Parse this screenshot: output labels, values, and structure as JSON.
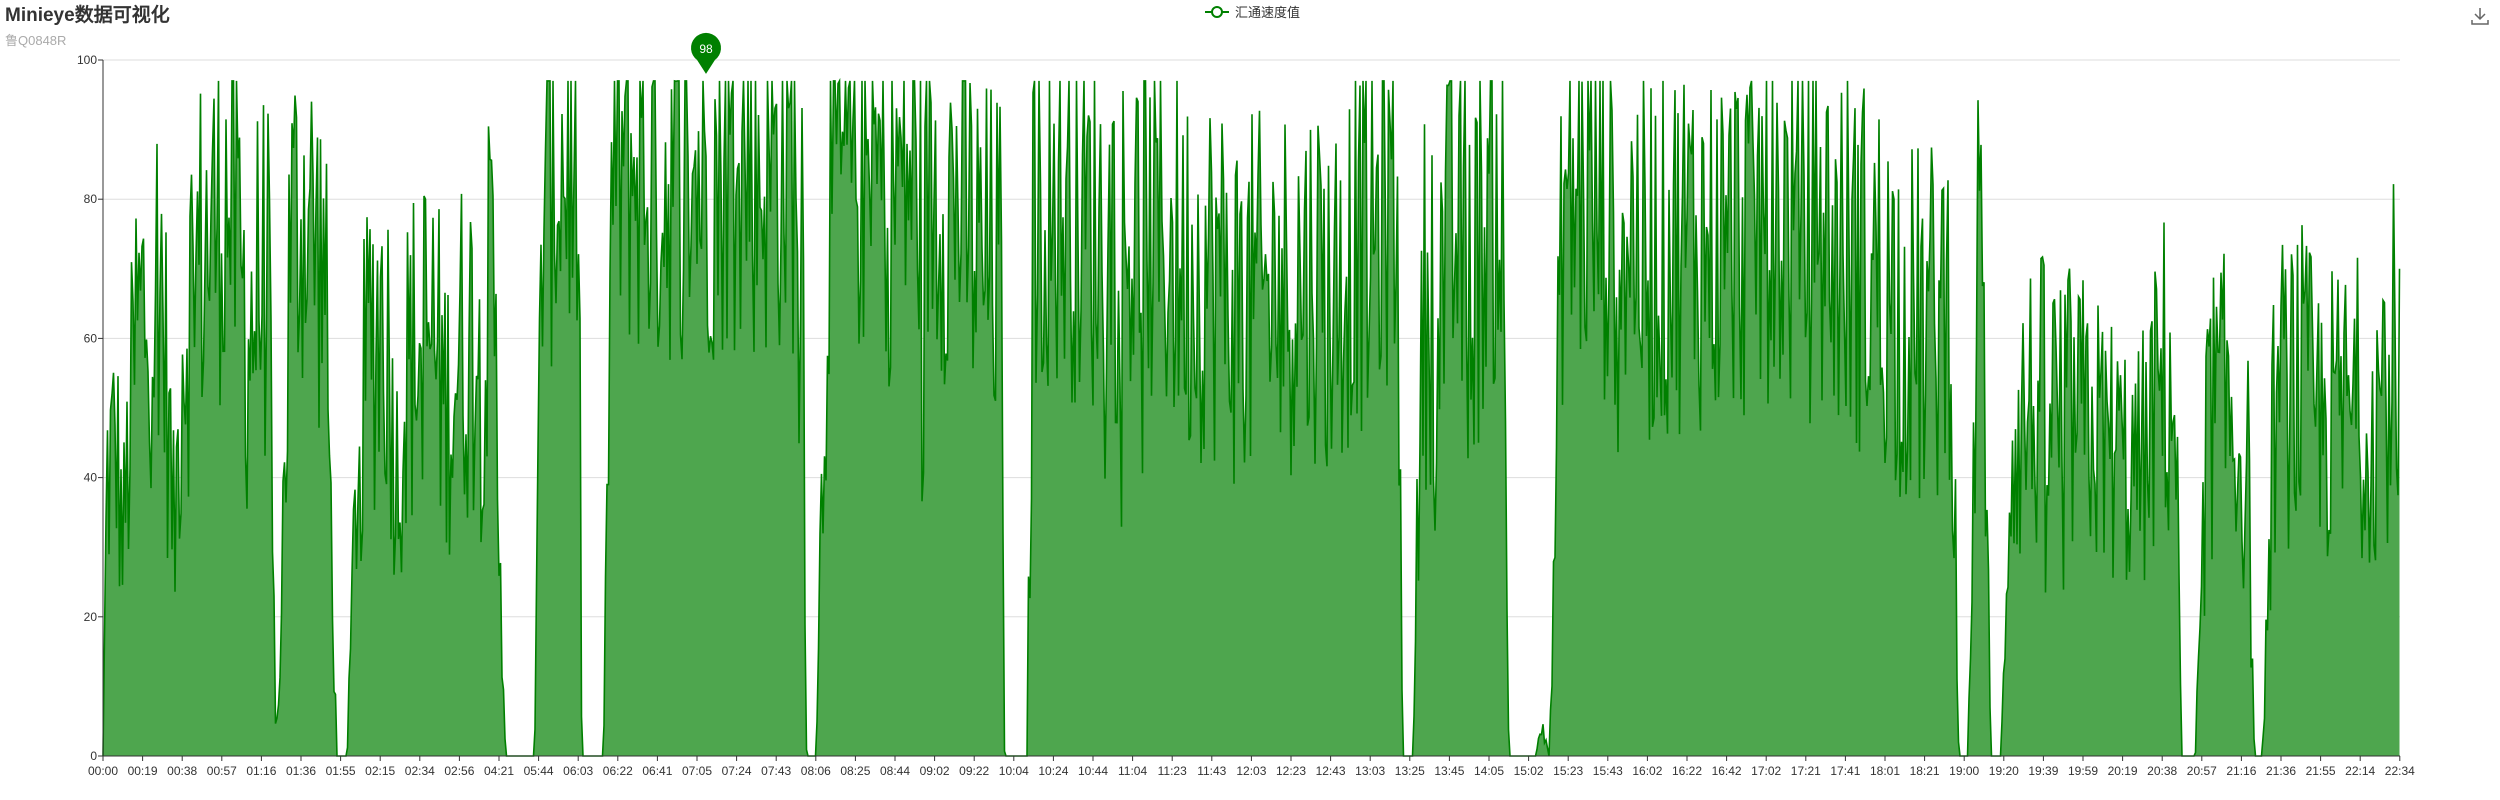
{
  "title": "Minieye数据可视化",
  "subtitle": "鲁Q0848R",
  "toolbox": {
    "download_icon": "download-icon"
  },
  "colors": {
    "line": "#008000",
    "area": "#4ea64e",
    "grid": "#dddddd",
    "axis": "#333333",
    "label": "#333333"
  },
  "chart_data": {
    "type": "area",
    "series": [
      {
        "name": "汇通速度值"
      }
    ],
    "x_tick_labels": [
      "00:00",
      "00:19",
      "00:38",
      "00:57",
      "01:16",
      "01:36",
      "01:55",
      "02:15",
      "02:34",
      "02:56",
      "04:21",
      "05:44",
      "06:03",
      "06:22",
      "06:41",
      "07:05",
      "07:24",
      "07:43",
      "08:06",
      "08:25",
      "08:44",
      "09:02",
      "09:22",
      "10:04",
      "10:24",
      "10:44",
      "11:04",
      "11:23",
      "11:43",
      "12:03",
      "12:23",
      "12:43",
      "13:03",
      "13:25",
      "13:45",
      "14:05",
      "15:02",
      "15:23",
      "15:43",
      "16:02",
      "16:22",
      "16:42",
      "17:02",
      "17:21",
      "17:41",
      "18:01",
      "18:21",
      "19:00",
      "19:20",
      "19:39",
      "19:59",
      "20:19",
      "20:38",
      "20:57",
      "21:16",
      "21:36",
      "21:55",
      "22:14",
      "22:34"
    ],
    "y_ticks": [
      0,
      20,
      40,
      60,
      80,
      100
    ],
    "ylim": [
      0,
      100
    ],
    "grid": true,
    "max_marker": {
      "value": 98,
      "at": "07:05"
    },
    "profile": [
      [
        0,
        0
      ],
      [
        0.3,
        40
      ],
      [
        1.0,
        45
      ],
      [
        1.5,
        30
      ],
      [
        2.5,
        60
      ],
      [
        3.4,
        65
      ],
      [
        4.4,
        70
      ],
      [
        5.4,
        30
      ],
      [
        6.0,
        60
      ],
      [
        7.0,
        70
      ],
      [
        8.1,
        75
      ],
      [
        9.4,
        80
      ],
      [
        10.1,
        75
      ],
      [
        11.0,
        60
      ],
      [
        11.8,
        68
      ],
      [
        12.5,
        70
      ],
      [
        13.1,
        0
      ],
      [
        13.6,
        30
      ],
      [
        14.2,
        75
      ],
      [
        15.4,
        80
      ],
      [
        16.0,
        75
      ],
      [
        16.8,
        70
      ],
      [
        17.7,
        0
      ],
      [
        18.5,
        0
      ],
      [
        19.2,
        40
      ],
      [
        20.2,
        60
      ],
      [
        21.3,
        65
      ],
      [
        22.3,
        40
      ],
      [
        23.0,
        55
      ],
      [
        24.0,
        60
      ],
      [
        25.0,
        60
      ],
      [
        26.0,
        50
      ],
      [
        27.0,
        58
      ],
      [
        28.0,
        60
      ],
      [
        29.6,
        65
      ],
      [
        30.5,
        0
      ],
      [
        31.5,
        0
      ],
      [
        32.7,
        0
      ],
      [
        33.3,
        80
      ],
      [
        34.5,
        85
      ],
      [
        35.5,
        85
      ],
      [
        36.0,
        80
      ],
      [
        36.3,
        0
      ],
      [
        37.3,
        0
      ],
      [
        37.9,
        0
      ],
      [
        38.6,
        85
      ],
      [
        40.0,
        85
      ],
      [
        42.0,
        82
      ],
      [
        44.0,
        85
      ],
      [
        46.0,
        84
      ],
      [
        48.0,
        86
      ],
      [
        50.0,
        84
      ],
      [
        52.0,
        85
      ],
      [
        53.0,
        84
      ],
      [
        53.3,
        0
      ],
      [
        54.0,
        0
      ],
      [
        55.0,
        82
      ],
      [
        57.0,
        85
      ],
      [
        59.0,
        83
      ],
      [
        61.0,
        84
      ],
      [
        63.0,
        82
      ],
      [
        65.0,
        80
      ],
      [
        66.5,
        70
      ],
      [
        68.0,
        70
      ],
      [
        68.3,
        0
      ],
      [
        69.3,
        0
      ],
      [
        70.0,
        0
      ],
      [
        70.5,
        80
      ],
      [
        72.0,
        80
      ],
      [
        74.0,
        78
      ],
      [
        76.0,
        75
      ],
      [
        78.0,
        75
      ],
      [
        80.0,
        75
      ],
      [
        82.0,
        70
      ],
      [
        84.0,
        70
      ],
      [
        86.0,
        65
      ],
      [
        88.0,
        65
      ],
      [
        90.0,
        68
      ],
      [
        92.0,
        70
      ],
      [
        93.0,
        65
      ],
      [
        94.0,
        70
      ],
      [
        95.0,
        75
      ],
      [
        96.0,
        72
      ],
      [
        97.0,
        80
      ],
      [
        98.0,
        80
      ],
      [
        98.5,
        0
      ],
      [
        99.2,
        0
      ],
      [
        100.0,
        65
      ],
      [
        101.5,
        70
      ],
      [
        102.5,
        75
      ],
      [
        104.0,
        70
      ],
      [
        105.0,
        80
      ],
      [
        106.0,
        80
      ],
      [
        106.5,
        0
      ],
      [
        107.5,
        0
      ],
      [
        108.5,
        0
      ],
      [
        109.0,
        5
      ],
      [
        109.6,
        0
      ],
      [
        110.6,
        80
      ],
      [
        112.0,
        80
      ],
      [
        114.0,
        78
      ],
      [
        116.0,
        75
      ],
      [
        118.0,
        72
      ],
      [
        120.0,
        75
      ],
      [
        122.0,
        73
      ],
      [
        124.0,
        75
      ],
      [
        126.0,
        78
      ],
      [
        128.0,
        76
      ],
      [
        130.0,
        75
      ],
      [
        132.0,
        72
      ],
      [
        134.0,
        70
      ],
      [
        136.0,
        65
      ],
      [
        137.0,
        62
      ],
      [
        138.0,
        60
      ],
      [
        139.0,
        63
      ],
      [
        140.0,
        68
      ],
      [
        140.6,
        0
      ],
      [
        141.3,
        0
      ],
      [
        142.0,
        70
      ],
      [
        142.5,
        65
      ],
      [
        143.0,
        0
      ],
      [
        143.8,
        0
      ],
      [
        144.5,
        45
      ],
      [
        146.0,
        50
      ],
      [
        148.0,
        50
      ],
      [
        150.0,
        48
      ],
      [
        152.0,
        45
      ],
      [
        154.0,
        40
      ],
      [
        155.0,
        45
      ],
      [
        156.0,
        55
      ],
      [
        157.0,
        50
      ],
      [
        157.5,
        0
      ],
      [
        158.5,
        0
      ],
      [
        159.5,
        50
      ],
      [
        161.0,
        50
      ],
      [
        162.5,
        40
      ],
      [
        163.0,
        0
      ],
      [
        163.6,
        0
      ],
      [
        164.5,
        50
      ],
      [
        166.0,
        55
      ],
      [
        168.0,
        48
      ],
      [
        170.0,
        50
      ],
      [
        172.0,
        50
      ],
      [
        173.0,
        55
      ],
      [
        174.0,
        60
      ],
      [
        175.0,
        75
      ],
      [
        175.5,
        70
      ],
      [
        176.0,
        0
      ]
    ]
  }
}
